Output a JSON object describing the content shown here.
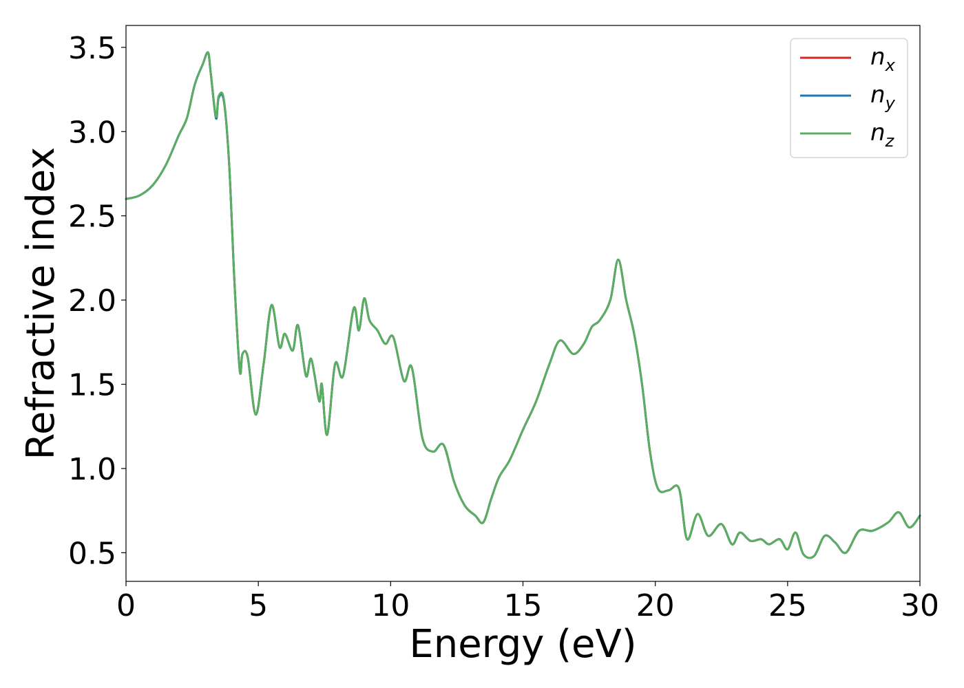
{
  "chart_data": {
    "type": "line",
    "title": "",
    "xlabel": "Energy (eV)",
    "ylabel": "Refractive index",
    "xlim": [
      0,
      30
    ],
    "ylim": [
      0.33,
      3.63
    ],
    "xticks": [
      0,
      5,
      10,
      15,
      20,
      25,
      30
    ],
    "xtick_labels": [
      "0",
      "5",
      "10",
      "15",
      "20",
      "25",
      "30"
    ],
    "yticks": [
      0.5,
      1.0,
      1.5,
      2.0,
      2.5,
      3.0,
      3.5
    ],
    "ytick_labels": [
      "0.5",
      "1.0",
      "1.5",
      "2.0",
      "2.5",
      "3.0",
      "3.5"
    ],
    "grid": false,
    "legend_position": "top-right",
    "x": [
      0,
      0.5,
      1.0,
      1.5,
      2.0,
      2.3,
      2.6,
      2.9,
      3.1,
      3.2,
      3.4,
      3.5,
      3.7,
      3.9,
      4.1,
      4.3,
      4.4,
      4.6,
      4.9,
      5.2,
      5.5,
      5.8,
      6.0,
      6.3,
      6.5,
      6.8,
      7.0,
      7.3,
      7.4,
      7.6,
      7.9,
      8.2,
      8.6,
      8.8,
      9.0,
      9.2,
      9.5,
      9.8,
      10.1,
      10.5,
      10.8,
      11.2,
      11.6,
      12.0,
      12.4,
      12.8,
      13.2,
      13.5,
      13.8,
      14.1,
      14.5,
      15.0,
      15.5,
      16.0,
      16.4,
      16.9,
      17.3,
      17.6,
      17.9,
      18.3,
      18.6,
      18.9,
      19.2,
      19.5,
      19.8,
      20.1,
      20.5,
      20.9,
      21.2,
      21.6,
      22.0,
      22.5,
      22.9,
      23.2,
      23.6,
      24.0,
      24.3,
      24.7,
      25.0,
      25.3,
      25.6,
      26.0,
      26.4,
      26.8,
      27.2,
      27.7,
      28.2,
      28.8,
      29.2,
      29.6,
      30.0
    ],
    "series": [
      {
        "name": "n_x",
        "color": "#d62728",
        "values": [
          2.6,
          2.62,
          2.68,
          2.8,
          2.98,
          3.08,
          3.28,
          3.4,
          3.47,
          3.35,
          3.08,
          3.2,
          3.18,
          2.8,
          2.1,
          1.58,
          1.68,
          1.66,
          1.32,
          1.62,
          1.97,
          1.72,
          1.8,
          1.7,
          1.85,
          1.55,
          1.65,
          1.4,
          1.5,
          1.2,
          1.62,
          1.55,
          1.95,
          1.82,
          2.01,
          1.88,
          1.82,
          1.74,
          1.78,
          1.52,
          1.6,
          1.18,
          1.1,
          1.14,
          0.92,
          0.78,
          0.72,
          0.68,
          0.82,
          0.95,
          1.05,
          1.23,
          1.4,
          1.62,
          1.76,
          1.68,
          1.74,
          1.84,
          1.88,
          2.0,
          2.24,
          2.0,
          1.8,
          1.5,
          1.1,
          0.88,
          0.87,
          0.88,
          0.58,
          0.73,
          0.6,
          0.67,
          0.55,
          0.62,
          0.57,
          0.58,
          0.55,
          0.58,
          0.52,
          0.62,
          0.49,
          0.48,
          0.6,
          0.56,
          0.5,
          0.63,
          0.63,
          0.68,
          0.74,
          0.65,
          0.72
        ]
      },
      {
        "name": "n_y",
        "color": "#1f77b4",
        "values": [
          2.6,
          2.62,
          2.68,
          2.8,
          2.98,
          3.08,
          3.28,
          3.4,
          3.47,
          3.35,
          3.08,
          3.2,
          3.18,
          2.8,
          2.1,
          1.58,
          1.68,
          1.66,
          1.32,
          1.62,
          1.97,
          1.72,
          1.8,
          1.7,
          1.85,
          1.55,
          1.65,
          1.4,
          1.5,
          1.2,
          1.62,
          1.55,
          1.95,
          1.82,
          2.01,
          1.88,
          1.82,
          1.74,
          1.78,
          1.52,
          1.6,
          1.18,
          1.1,
          1.14,
          0.92,
          0.78,
          0.72,
          0.68,
          0.82,
          0.95,
          1.05,
          1.23,
          1.4,
          1.62,
          1.76,
          1.68,
          1.74,
          1.84,
          1.88,
          2.0,
          2.24,
          2.0,
          1.8,
          1.5,
          1.1,
          0.88,
          0.87,
          0.88,
          0.58,
          0.73,
          0.6,
          0.67,
          0.55,
          0.62,
          0.57,
          0.58,
          0.55,
          0.58,
          0.52,
          0.62,
          0.49,
          0.48,
          0.6,
          0.56,
          0.5,
          0.63,
          0.63,
          0.68,
          0.74,
          0.65,
          0.72
        ]
      },
      {
        "name": "n_z",
        "color": "#5aae61",
        "values": [
          2.6,
          2.62,
          2.68,
          2.8,
          2.98,
          3.08,
          3.28,
          3.4,
          3.47,
          3.35,
          3.09,
          3.21,
          3.19,
          2.8,
          2.1,
          1.58,
          1.68,
          1.66,
          1.32,
          1.62,
          1.97,
          1.72,
          1.8,
          1.7,
          1.85,
          1.55,
          1.65,
          1.4,
          1.5,
          1.2,
          1.62,
          1.55,
          1.95,
          1.82,
          2.01,
          1.88,
          1.82,
          1.74,
          1.78,
          1.52,
          1.6,
          1.18,
          1.1,
          1.14,
          0.92,
          0.78,
          0.72,
          0.68,
          0.82,
          0.95,
          1.05,
          1.23,
          1.4,
          1.62,
          1.76,
          1.68,
          1.74,
          1.84,
          1.88,
          2.0,
          2.24,
          2.0,
          1.8,
          1.5,
          1.1,
          0.88,
          0.87,
          0.88,
          0.58,
          0.73,
          0.6,
          0.67,
          0.55,
          0.62,
          0.57,
          0.58,
          0.55,
          0.58,
          0.52,
          0.62,
          0.49,
          0.48,
          0.6,
          0.56,
          0.5,
          0.63,
          0.63,
          0.68,
          0.74,
          0.65,
          0.72
        ]
      }
    ],
    "legend": [
      {
        "base": "n",
        "sub": "x",
        "color": "#d62728"
      },
      {
        "base": "n",
        "sub": "y",
        "color": "#1f77b4"
      },
      {
        "base": "n",
        "sub": "z",
        "color": "#5aae61"
      }
    ]
  }
}
